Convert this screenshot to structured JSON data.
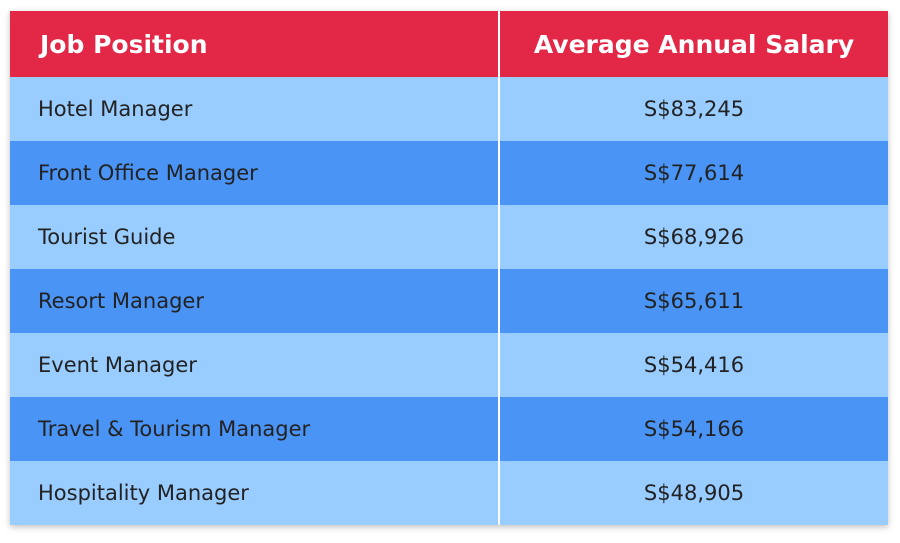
{
  "table": {
    "header": [
      "Job Position",
      "Average Annual Salary"
    ],
    "rows": [
      [
        "Hotel Manager",
        "S$83,245"
      ],
      [
        "Front Office Manager",
        "S$77,614"
      ],
      [
        "Tourist Guide",
        "S$68,926"
      ],
      [
        "Resort Manager",
        "S$65,611"
      ],
      [
        "Event Manager",
        "S$54,416"
      ],
      [
        "Travel & Tourism Manager",
        "S$54,166"
      ],
      [
        "Hospitality Manager",
        "S$48,905"
      ]
    ]
  }
}
